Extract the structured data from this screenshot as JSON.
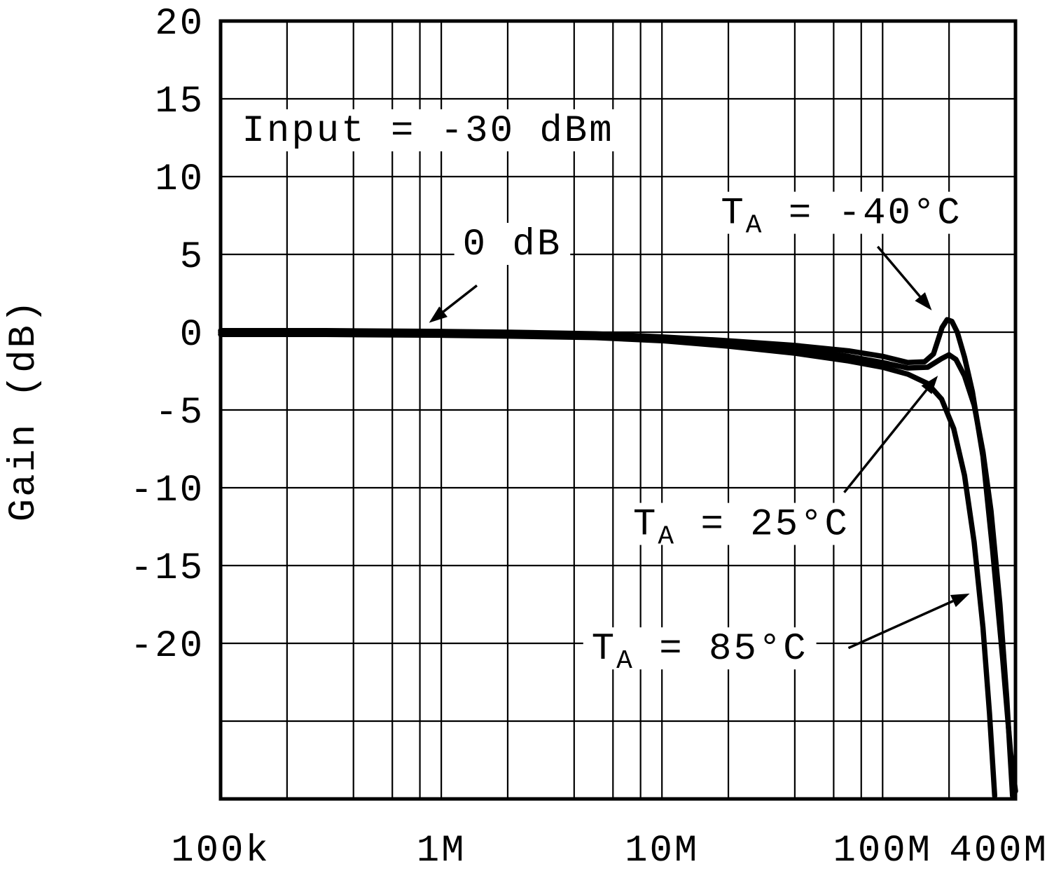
{
  "page": {
    "background": "#ffffff"
  },
  "chart_data": {
    "type": "line",
    "title": "",
    "xlabel": "",
    "ylabel": "Gain (dB)",
    "x_scale": "log",
    "x_unit": "MHz",
    "xlim_mhz": [
      0.1,
      400
    ],
    "ylim": [
      -30,
      20
    ],
    "grid": true,
    "y_grid_step": 5,
    "y_labeled_ticks": [
      20,
      15,
      10,
      5,
      0,
      -5,
      -10,
      -15,
      -20
    ],
    "x_major_ticks": [
      {
        "mhz": 0.1,
        "label": "100k"
      },
      {
        "mhz": 1,
        "label": "1M"
      },
      {
        "mhz": 10,
        "label": "10M"
      },
      {
        "mhz": 100,
        "label": "100M"
      },
      {
        "mhz": 400,
        "label": "400M"
      }
    ],
    "x_minor_multiples": [
      2,
      4,
      6,
      8
    ],
    "line_color": "#000000",
    "condition_label": "Input = -30 dBm",
    "series": [
      {
        "name": "TA = -40°C",
        "points_mhz_db": [
          [
            0.1,
            0.1
          ],
          [
            0.3,
            0.1
          ],
          [
            1,
            0.05
          ],
          [
            2,
            0
          ],
          [
            5,
            -0.1
          ],
          [
            10,
            -0.3
          ],
          [
            20,
            -0.55
          ],
          [
            40,
            -0.85
          ],
          [
            70,
            -1.2
          ],
          [
            100,
            -1.55
          ],
          [
            130,
            -1.95
          ],
          [
            155,
            -1.9
          ],
          [
            170,
            -1.4
          ],
          [
            186,
            0.3
          ],
          [
            196,
            0.8
          ],
          [
            206,
            0.7
          ],
          [
            218,
            0
          ],
          [
            235,
            -1.6
          ],
          [
            255,
            -3.8
          ],
          [
            285,
            -8
          ],
          [
            315,
            -14
          ],
          [
            350,
            -21
          ],
          [
            380,
            -27
          ],
          [
            400,
            -29.5
          ]
        ]
      },
      {
        "name": "TA = 25°C",
        "points_mhz_db": [
          [
            0.1,
            0
          ],
          [
            0.3,
            0
          ],
          [
            1,
            -0.05
          ],
          [
            2,
            -0.1
          ],
          [
            5,
            -0.2
          ],
          [
            10,
            -0.4
          ],
          [
            20,
            -0.7
          ],
          [
            40,
            -1.1
          ],
          [
            70,
            -1.55
          ],
          [
            100,
            -1.95
          ],
          [
            130,
            -2.3
          ],
          [
            160,
            -2.25
          ],
          [
            185,
            -1.7
          ],
          [
            200,
            -1.45
          ],
          [
            215,
            -1.75
          ],
          [
            235,
            -2.8
          ],
          [
            260,
            -4.7
          ],
          [
            285,
            -7.7
          ],
          [
            310,
            -11.5
          ],
          [
            340,
            -17.5
          ],
          [
            365,
            -23.5
          ],
          [
            388,
            -29.8
          ]
        ]
      },
      {
        "name": "TA = 85°C",
        "points_mhz_db": [
          [
            0.1,
            -0.15
          ],
          [
            0.3,
            -0.15
          ],
          [
            1,
            -0.2
          ],
          [
            2,
            -0.25
          ],
          [
            5,
            -0.35
          ],
          [
            10,
            -0.55
          ],
          [
            20,
            -0.9
          ],
          [
            40,
            -1.35
          ],
          [
            70,
            -1.85
          ],
          [
            100,
            -2.25
          ],
          [
            130,
            -2.7
          ],
          [
            160,
            -3.3
          ],
          [
            185,
            -4.3
          ],
          [
            210,
            -6.2
          ],
          [
            235,
            -9.2
          ],
          [
            260,
            -13.5
          ],
          [
            285,
            -19
          ],
          [
            305,
            -24.5
          ],
          [
            322,
            -29.8
          ]
        ]
      }
    ],
    "annotations": [
      {
        "id": "input-condition-label",
        "segments": [
          {
            "t": "Input = -30 dBm"
          }
        ],
        "x_mhz": 0.125,
        "y_db": 12.3,
        "box": true
      },
      {
        "id": "zero-db-label",
        "segments": [
          {
            "t": "0 dB"
          }
        ],
        "x_mhz": 1.25,
        "y_db": 5.0,
        "box": true,
        "arrow": {
          "from_mhz_db": [
            1.45,
            3.0
          ],
          "to_mhz_db": [
            0.88,
            0.6
          ]
        }
      },
      {
        "id": "ta-minus-40c-label",
        "segments": [
          {
            "t": "T"
          },
          {
            "t": "A",
            "sub": true
          },
          {
            "t": " = -40°C"
          }
        ],
        "x_mhz": 18.5,
        "y_db": 7.0,
        "box": true,
        "arrow": {
          "from_mhz_db": [
            95,
            5.5
          ],
          "to_mhz_db": [
            167,
            1.4
          ]
        }
      },
      {
        "id": "ta-25c-label",
        "segments": [
          {
            "t": "T"
          },
          {
            "t": "A",
            "sub": true
          },
          {
            "t": " = 25°C"
          }
        ],
        "x_mhz": 7.4,
        "y_db": -13.0,
        "box": true,
        "arrow": {
          "from_mhz_db": [
            67,
            -10.3
          ],
          "to_mhz_db": [
            178,
            -2.8
          ]
        }
      },
      {
        "id": "ta-85c-label",
        "segments": [
          {
            "t": "T"
          },
          {
            "t": "A",
            "sub": true
          },
          {
            "t": " = 85°C"
          }
        ],
        "x_mhz": 4.8,
        "y_db": -21.0,
        "box": true,
        "arrow": {
          "from_mhz_db": [
            70,
            -20.3
          ],
          "to_mhz_db": [
            248,
            -16.8
          ]
        }
      }
    ]
  }
}
